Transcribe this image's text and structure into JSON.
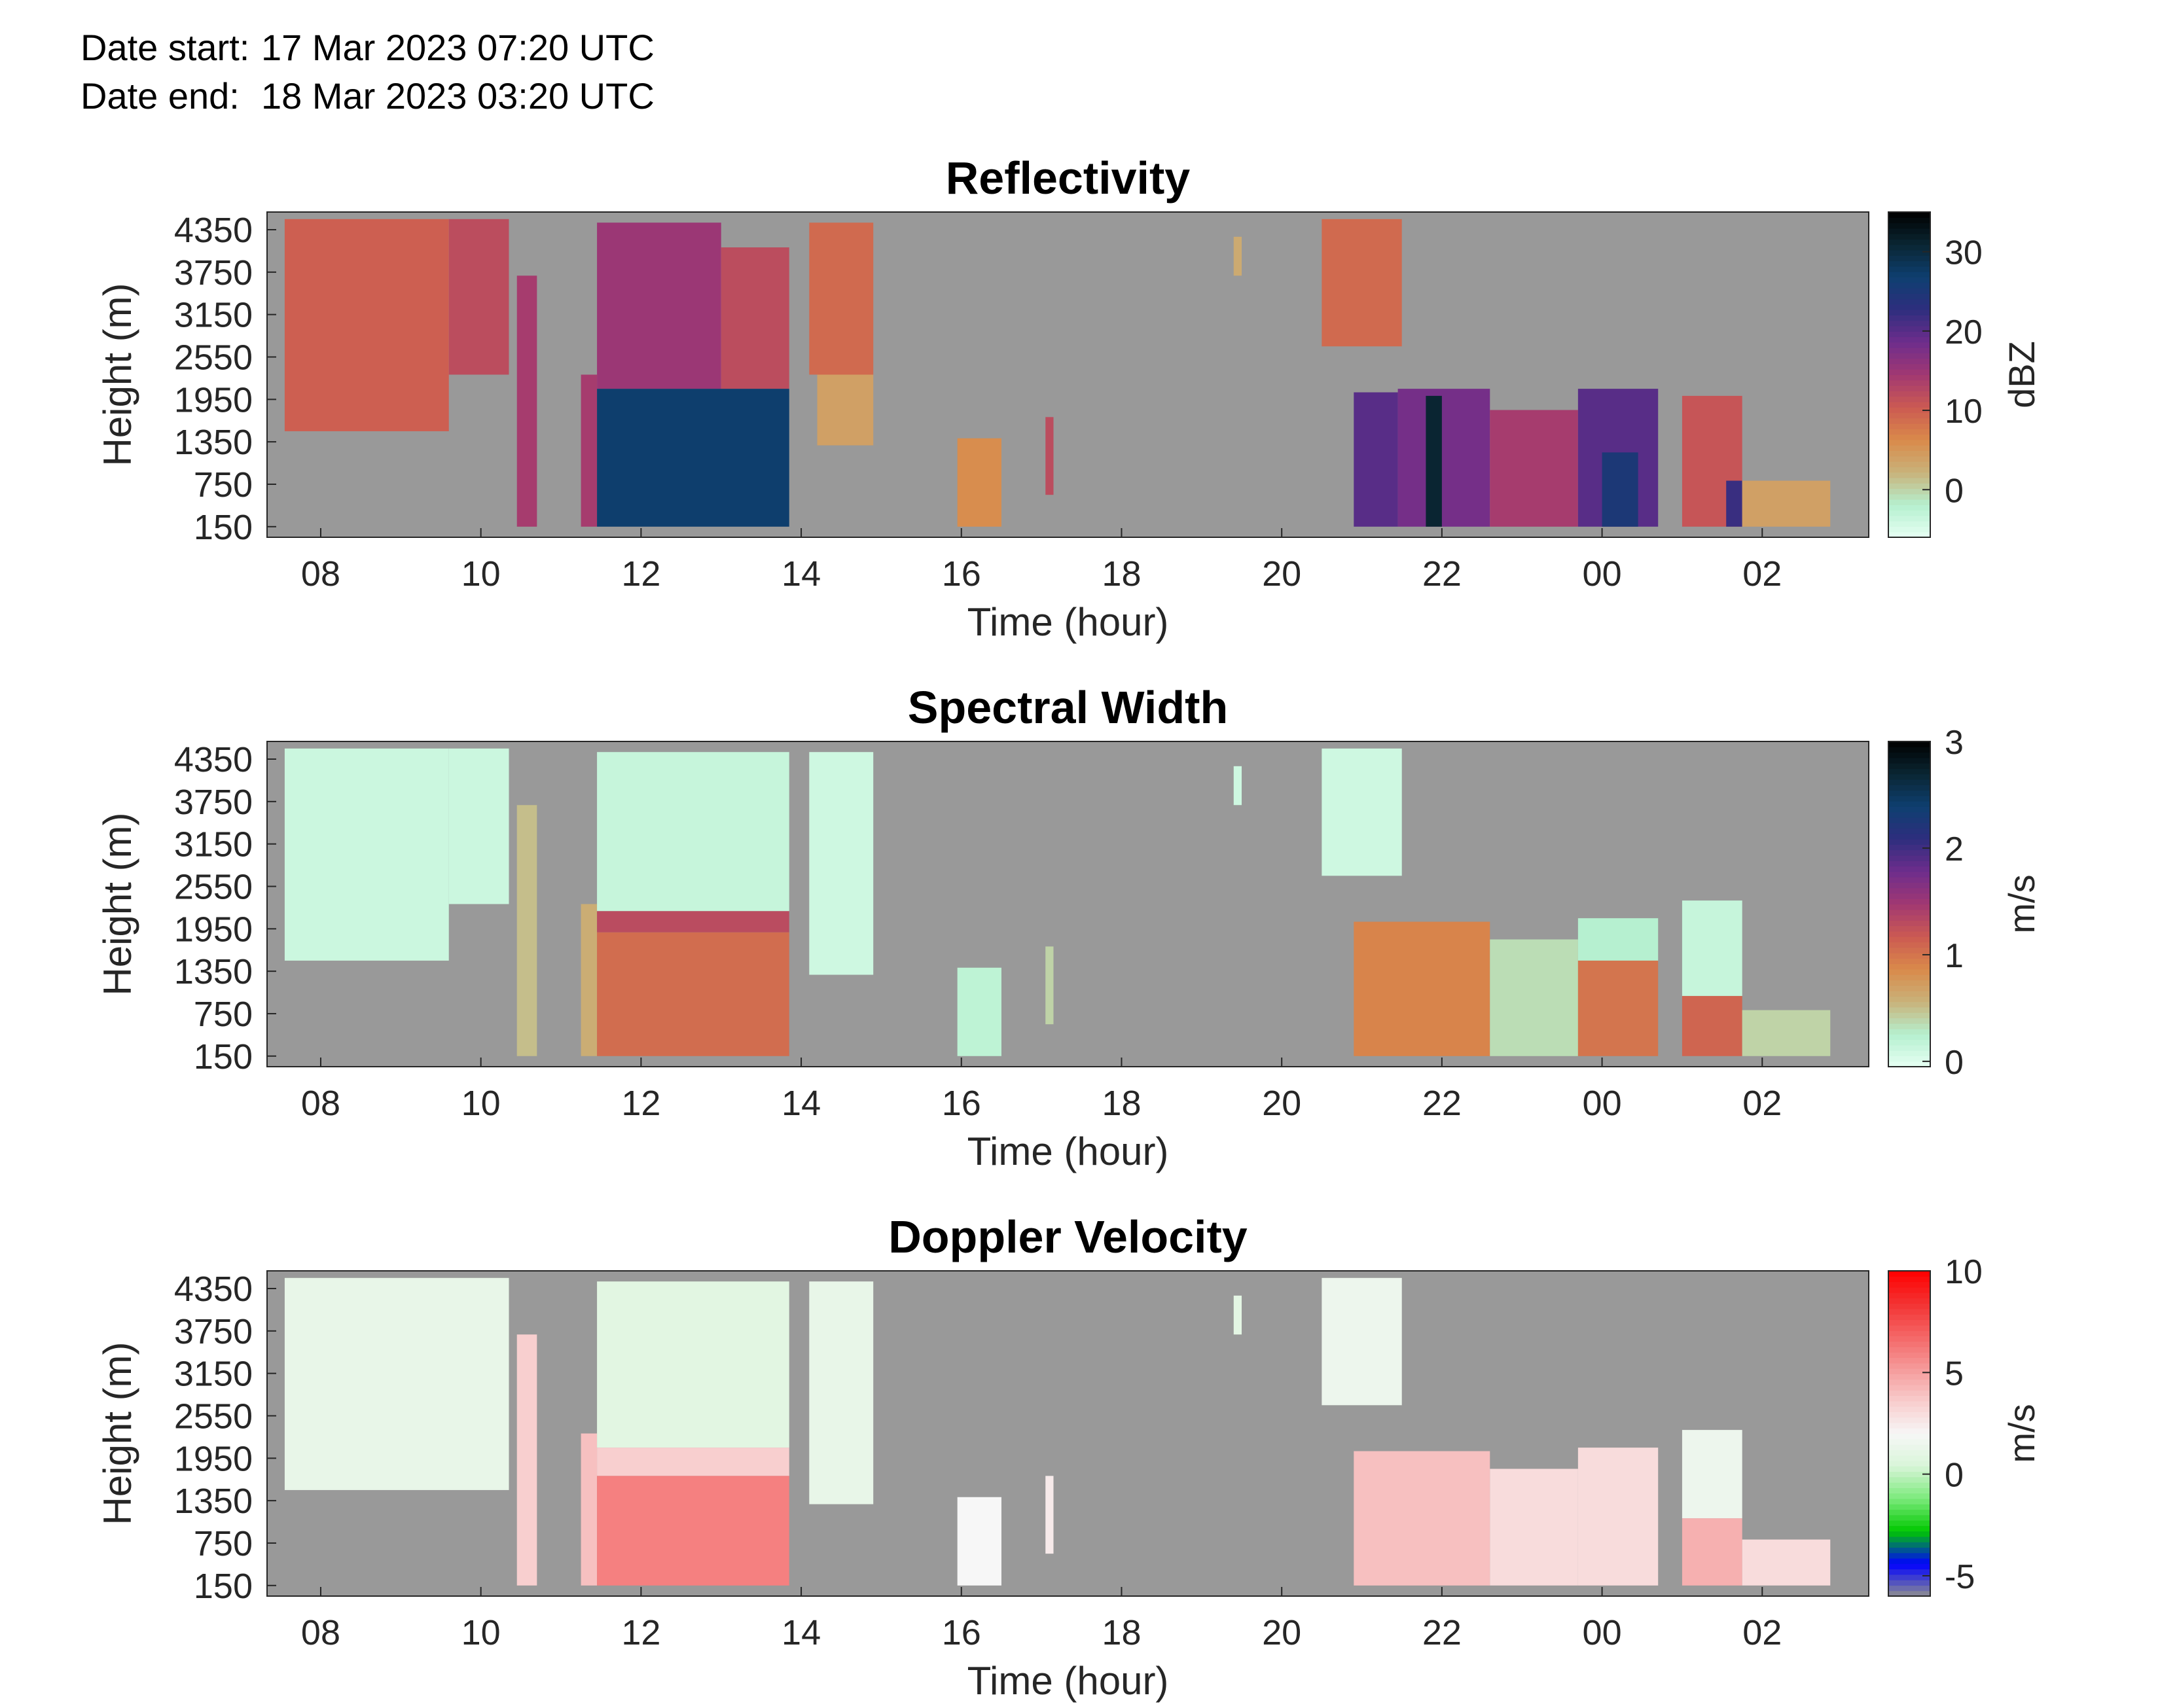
{
  "header": {
    "start_label": "Date start:",
    "start_value": "17 Mar 2023 07:20 UTC",
    "end_label": "Date end:",
    "end_value": "18 Mar 2023 03:20 UTC"
  },
  "chart_data": [
    {
      "type": "heatmap",
      "title": "Reflectivity",
      "xlabel": "Time (hour)",
      "ylabel": "Height (m)",
      "xticks": [
        "08",
        "10",
        "12",
        "14",
        "16",
        "18",
        "20",
        "22",
        "00",
        "02"
      ],
      "yticks": [
        150,
        750,
        1350,
        1950,
        2550,
        3150,
        3750,
        4350
      ],
      "colorbar": {
        "label": "dBZ",
        "ticks": [
          0,
          10,
          20,
          30
        ],
        "range": [
          -6,
          35
        ],
        "colormap": [
          "#e6fff3",
          "#b5f0cf",
          "#c9b27a",
          "#d98a4a",
          "#cc5a52",
          "#a13872",
          "#6e2d8c",
          "#2e2e7e",
          "#0e3f70",
          "#0a2633",
          "#000000"
        ]
      },
      "background": "#999999",
      "regions": [
        {
          "t": [
            7.55,
            9.6
          ],
          "h": [
            1500,
            4500
          ],
          "v": 10
        },
        {
          "t": [
            9.6,
            10.35
          ],
          "h": [
            2300,
            4500
          ],
          "v": 12
        },
        {
          "t": [
            10.45,
            10.7
          ],
          "h": [
            150,
            3700
          ],
          "v": 14
        },
        {
          "t": [
            11.25,
            11.45
          ],
          "h": [
            150,
            2300
          ],
          "v": 14
        },
        {
          "t": [
            11.45,
            13.0
          ],
          "h": [
            2100,
            4450
          ],
          "v": 15
        },
        {
          "t": [
            13.0,
            13.85
          ],
          "h": [
            2100,
            4100
          ],
          "v": 12
        },
        {
          "t": [
            11.45,
            13.85
          ],
          "h": [
            150,
            2100
          ],
          "v": 27
        },
        {
          "t": [
            14.1,
            14.9
          ],
          "h": [
            2300,
            4450
          ],
          "v": 9
        },
        {
          "t": [
            14.2,
            14.9
          ],
          "h": [
            1300,
            2300
          ],
          "v": 4
        },
        {
          "t": [
            15.95,
            16.5
          ],
          "h": [
            150,
            1400
          ],
          "v": 6
        },
        {
          "t": [
            17.05,
            17.15
          ],
          "h": [
            600,
            1700
          ],
          "v": 12
        },
        {
          "t": [
            19.4,
            19.5
          ],
          "h": [
            3700,
            4250
          ],
          "v": 3
        },
        {
          "t": [
            20.5,
            21.5
          ],
          "h": [
            2700,
            4500
          ],
          "v": 9
        },
        {
          "t": [
            20.9,
            21.45
          ],
          "h": [
            150,
            2050
          ],
          "v": 20
        },
        {
          "t": [
            21.45,
            22.6
          ],
          "h": [
            150,
            2100
          ],
          "v": 18
        },
        {
          "t": [
            21.8,
            22.0
          ],
          "h": [
            150,
            2000
          ],
          "v": 31
        },
        {
          "t": [
            22.6,
            23.7
          ],
          "h": [
            150,
            1800
          ],
          "v": 14
        },
        {
          "t": [
            23.7,
            24.7
          ],
          "h": [
            150,
            2100
          ],
          "v": 20
        },
        {
          "t": [
            24.0,
            24.45
          ],
          "h": [
            150,
            1200
          ],
          "v": 25
        },
        {
          "t": [
            25.0,
            25.75
          ],
          "h": [
            150,
            2000
          ],
          "v": 11
        },
        {
          "t": [
            25.55,
            25.75
          ],
          "h": [
            150,
            800
          ],
          "v": 22
        },
        {
          "t": [
            25.75,
            26.85
          ],
          "h": [
            150,
            800
          ],
          "v": 4
        }
      ]
    },
    {
      "type": "heatmap",
      "title": "Spectral Width",
      "xlabel": "Time (hour)",
      "ylabel": "Height (m)",
      "xticks": [
        "08",
        "10",
        "12",
        "14",
        "16",
        "18",
        "20",
        "22",
        "00",
        "02"
      ],
      "yticks": [
        150,
        750,
        1350,
        1950,
        2550,
        3150,
        3750,
        4350
      ],
      "colorbar": {
        "label": "m/s",
        "ticks": [
          0,
          1,
          2,
          3
        ],
        "range": [
          -0.05,
          3
        ],
        "colormap": [
          "#e6fff3",
          "#b5f0cf",
          "#c9b27a",
          "#d98a4a",
          "#cc5a52",
          "#a13872",
          "#6e2d8c",
          "#2e2e7e",
          "#0e3f70",
          "#0a2633",
          "#000000"
        ]
      },
      "background": "#999999",
      "regions": [
        {
          "t": [
            7.55,
            9.6
          ],
          "h": [
            1500,
            4500
          ],
          "v": 0.12
        },
        {
          "t": [
            9.6,
            10.35
          ],
          "h": [
            2300,
            4500
          ],
          "v": 0.12
        },
        {
          "t": [
            10.45,
            10.7
          ],
          "h": [
            150,
            3700
          ],
          "v": 0.5
        },
        {
          "t": [
            11.25,
            11.45
          ],
          "h": [
            150,
            2300
          ],
          "v": 0.6
        },
        {
          "t": [
            11.45,
            13.85
          ],
          "h": [
            2200,
            4450
          ],
          "v": 0.15
        },
        {
          "t": [
            11.45,
            13.85
          ],
          "h": [
            1900,
            2200
          ],
          "v": 1.3
        },
        {
          "t": [
            11.45,
            13.85
          ],
          "h": [
            150,
            1900
          ],
          "v": 1.05
        },
        {
          "t": [
            14.1,
            14.9
          ],
          "h": [
            1300,
            4450
          ],
          "v": 0.1
        },
        {
          "t": [
            15.95,
            16.5
          ],
          "h": [
            150,
            1400
          ],
          "v": 0.2
        },
        {
          "t": [
            17.05,
            17.15
          ],
          "h": [
            600,
            1700
          ],
          "v": 0.4
        },
        {
          "t": [
            19.4,
            19.5
          ],
          "h": [
            3700,
            4250
          ],
          "v": 0.1
        },
        {
          "t": [
            20.5,
            21.5
          ],
          "h": [
            2700,
            4500
          ],
          "v": 0.1
        },
        {
          "t": [
            20.9,
            22.6
          ],
          "h": [
            150,
            2050
          ],
          "v": 0.9
        },
        {
          "t": [
            22.6,
            23.7
          ],
          "h": [
            150,
            1800
          ],
          "v": 0.35
        },
        {
          "t": [
            23.7,
            24.7
          ],
          "h": [
            1500,
            2100
          ],
          "v": 0.25
        },
        {
          "t": [
            23.7,
            24.7
          ],
          "h": [
            150,
            1500
          ],
          "v": 1.0
        },
        {
          "t": [
            25.0,
            25.75
          ],
          "h": [
            1000,
            2350
          ],
          "v": 0.15
        },
        {
          "t": [
            25.0,
            25.75
          ],
          "h": [
            150,
            1000
          ],
          "v": 1.1
        },
        {
          "t": [
            25.75,
            26.85
          ],
          "h": [
            150,
            800
          ],
          "v": 0.4
        }
      ]
    },
    {
      "type": "heatmap",
      "title": "Doppler Velocity",
      "xlabel": "Time (hour)",
      "ylabel": "Height (m)",
      "xticks": [
        "08",
        "10",
        "12",
        "14",
        "16",
        "18",
        "20",
        "22",
        "00",
        "02"
      ],
      "yticks": [
        150,
        750,
        1350,
        1950,
        2550,
        3150,
        3750,
        4350
      ],
      "colorbar": {
        "label": "m/s",
        "ticks": [
          -5,
          0,
          5,
          10
        ],
        "range": [
          -6,
          10
        ],
        "colormap": [
          "#909090",
          "#0000ff",
          "#00c800",
          "#7bea7b",
          "#d8f5d8",
          "#f7f7f7",
          "#f8cccc",
          "#f59a9a",
          "#f46666",
          "#f33232",
          "#ff0000"
        ]
      },
      "background": "#999999",
      "regions": [
        {
          "t": [
            7.55,
            10.35
          ],
          "h": [
            1500,
            4500
          ],
          "v": 1.2
        },
        {
          "t": [
            10.45,
            10.7
          ],
          "h": [
            150,
            3700
          ],
          "v": 3.5
        },
        {
          "t": [
            11.25,
            11.45
          ],
          "h": [
            150,
            2300
          ],
          "v": 4.0
        },
        {
          "t": [
            11.45,
            13.85
          ],
          "h": [
            2100,
            4450
          ],
          "v": 0.9
        },
        {
          "t": [
            11.45,
            13.85
          ],
          "h": [
            1700,
            2100
          ],
          "v": 3.5
        },
        {
          "t": [
            11.45,
            13.85
          ],
          "h": [
            150,
            1700
          ],
          "v": 6.0
        },
        {
          "t": [
            14.1,
            14.9
          ],
          "h": [
            1300,
            4450
          ],
          "v": 1.2
        },
        {
          "t": [
            15.95,
            16.5
          ],
          "h": [
            150,
            1400
          ],
          "v": 2.0
        },
        {
          "t": [
            17.05,
            17.15
          ],
          "h": [
            600,
            1700
          ],
          "v": 2.5
        },
        {
          "t": [
            19.4,
            19.5
          ],
          "h": [
            3700,
            4250
          ],
          "v": 1.0
        },
        {
          "t": [
            20.5,
            21.5
          ],
          "h": [
            2700,
            4500
          ],
          "v": 1.5
        },
        {
          "t": [
            20.9,
            22.6
          ],
          "h": [
            150,
            2050
          ],
          "v": 4.0
        },
        {
          "t": [
            22.6,
            23.7
          ],
          "h": [
            150,
            1800
          ],
          "v": 3.0
        },
        {
          "t": [
            23.7,
            24.7
          ],
          "h": [
            150,
            2100
          ],
          "v": 3.0
        },
        {
          "t": [
            25.0,
            25.75
          ],
          "h": [
            1100,
            2350
          ],
          "v": 1.5
        },
        {
          "t": [
            25.0,
            25.75
          ],
          "h": [
            150,
            1100
          ],
          "v": 4.5
        },
        {
          "t": [
            25.75,
            26.85
          ],
          "h": [
            150,
            800
          ],
          "v": 3.0
        }
      ]
    }
  ]
}
